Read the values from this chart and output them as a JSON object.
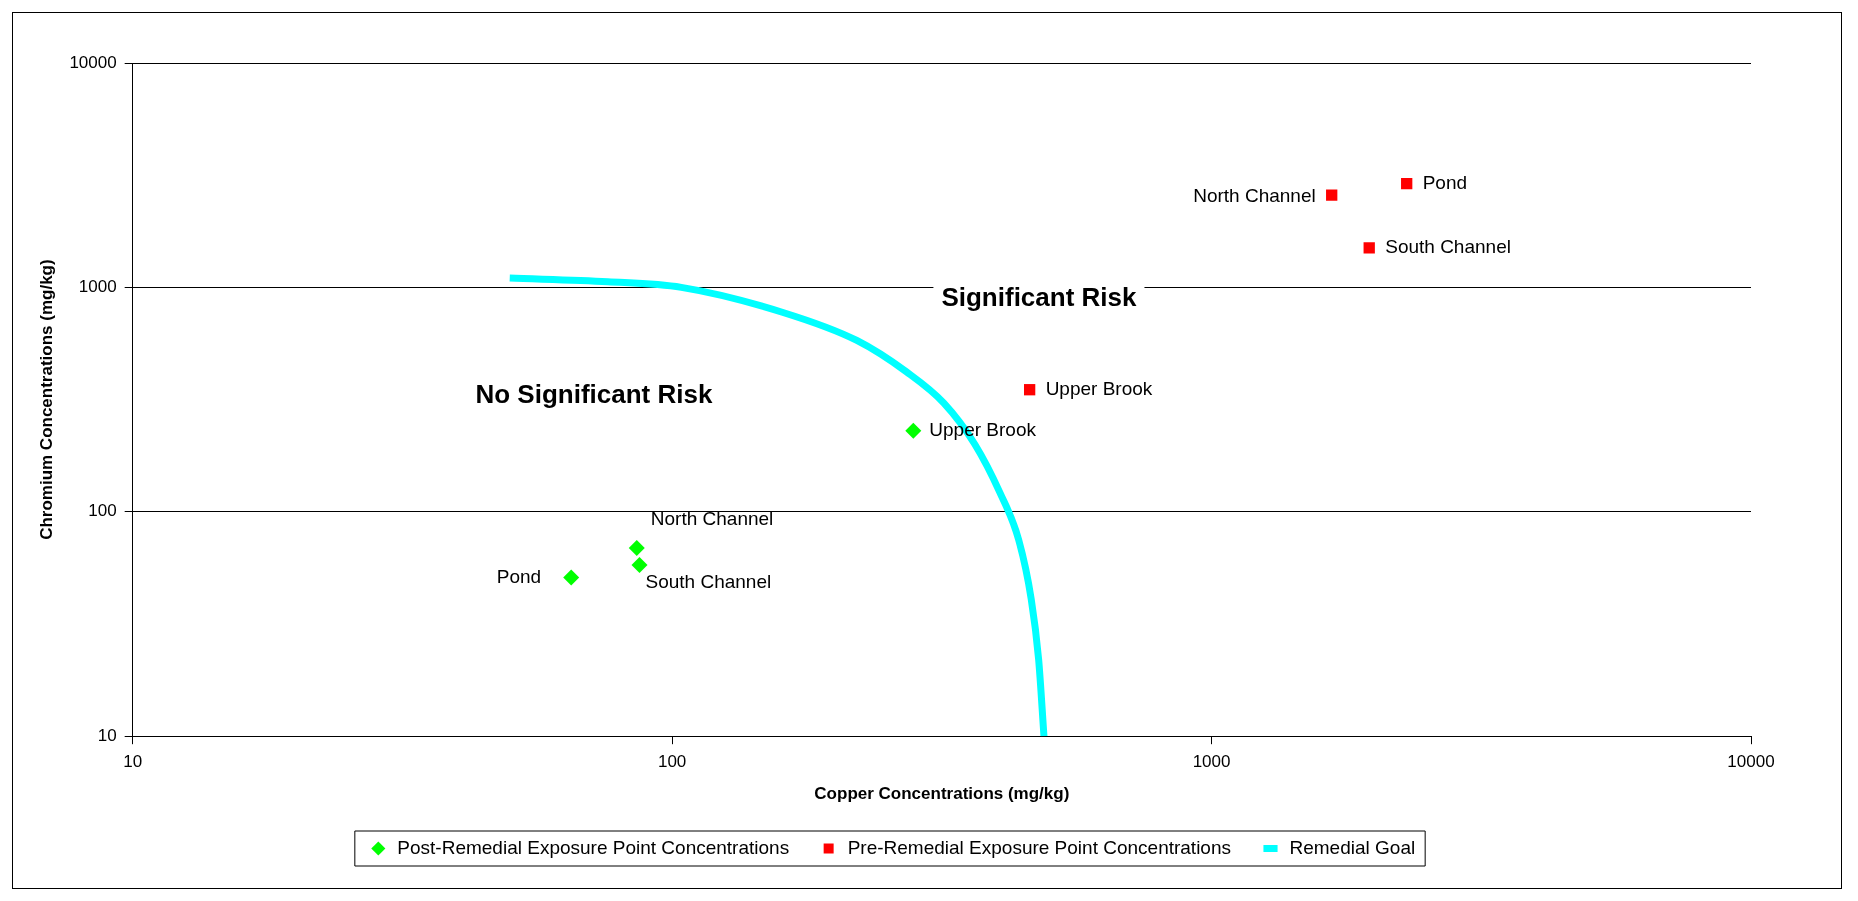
{
  "chart_data": {
    "type": "scatter",
    "xlabel": "Copper Concentrations (mg/kg)",
    "ylabel": "Chromium Concentrations (mg/kg)",
    "log": "xy",
    "grid": "y",
    "legend": "bottom",
    "xlim": [
      10,
      10000
    ],
    "xticks": [
      10,
      100,
      1000,
      10000
    ],
    "ylim": [
      10,
      10000
    ],
    "yticks": [
      10,
      100,
      1000,
      10000
    ],
    "series": [
      {
        "name": "Post-Remedial Exposure Point Concentrations",
        "type": "scatter",
        "marker": "diamond",
        "color": "#00ff00",
        "x": [
          65,
          86,
          87,
          280
        ],
        "values": [
          51,
          69,
          58,
          230
        ]
      },
      {
        "name": "Pre-Remedial Exposure Point Concentrations",
        "type": "scatter",
        "marker": "square",
        "color": "#ff0000",
        "x": [
          460,
          1670,
          2300,
          1960
        ],
        "values": [
          350,
          2580,
          2900,
          1500
        ]
      },
      {
        "name": "Remedial Goal",
        "type": "line",
        "marker": "none",
        "color": "#00ffff",
        "x": [
          50,
          76,
          104,
          160,
          220,
          272,
          319,
          364,
          405,
          439,
          463,
          478,
          489
        ],
        "values": [
          1100,
          1060,
          1000,
          775,
          580,
          420,
          305,
          200,
          122,
          75,
          41,
          22,
          10
        ]
      }
    ],
    "annotations": [
      {
        "text": "Pond",
        "x": 65,
        "y": 51
      },
      {
        "text": "North Channel",
        "x": 86,
        "y": 69
      },
      {
        "text": "South Channel",
        "x": 87,
        "y": 58
      },
      {
        "text": "Upper Brook",
        "x": 280,
        "y": 230
      },
      {
        "text": "Upper Brook",
        "x": 460,
        "y": 350
      },
      {
        "text": "North Channel",
        "x": 1670,
        "y": 2580
      },
      {
        "text": "Pond",
        "x": 2300,
        "y": 2900
      },
      {
        "text": "South Channel",
        "x": 1960,
        "y": 1500
      },
      "No Significant Risk",
      "Significant Risk"
    ]
  }
}
